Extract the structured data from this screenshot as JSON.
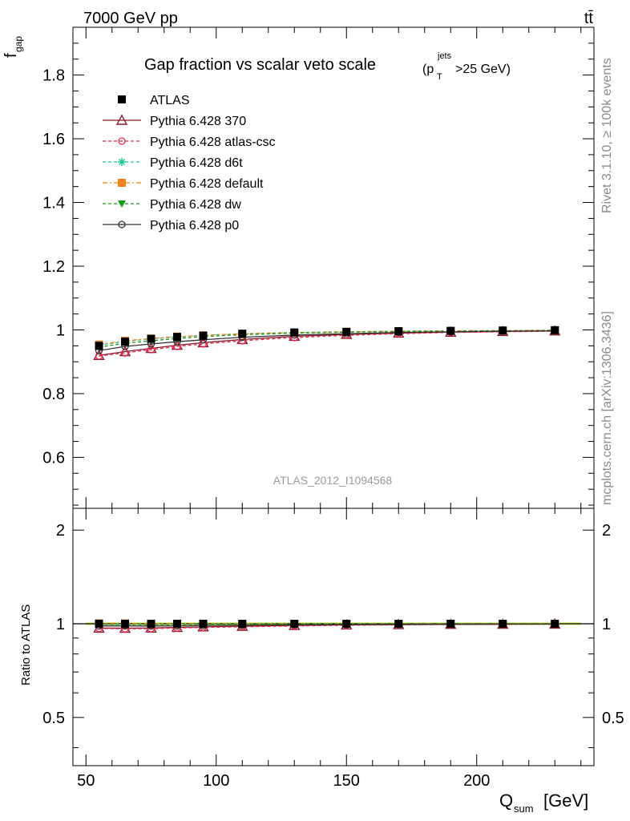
{
  "header": {
    "energy_label": "7000 GeV pp",
    "process_label": "tt̄"
  },
  "side_labels": {
    "rivet": "Rivet 3.1.10, ≥ 100k events",
    "mcplots": "mcplots.cern.ch [arXiv:1306.3436]"
  },
  "chart_data": {
    "type": "line",
    "title_main": "Gap fraction vs scalar veto scale",
    "title_cut": "(p",
    "title_cut_sup": "jets",
    "title_cut_sub": "T",
    "title_cut_tail": ">25 GeV)",
    "ylabel_main": "f",
    "ylabel_main_sub": "gap",
    "ylabel_ratio": "Ratio to ATLAS",
    "xlabel": "Q",
    "xlabel_sub": "sum",
    "xlabel_unit": "[GeV]",
    "watermark": "ATLAS_2012_I1094568",
    "xlim": [
      45,
      245
    ],
    "ylim_main": [
      0.44,
      1.95
    ],
    "ylim_ratio": [
      0.35,
      2.35
    ],
    "ratio_log_scale": true,
    "x_ticks": [
      50,
      100,
      150,
      200
    ],
    "y_ticks_main": [
      0.6,
      0.8,
      1,
      1.2,
      1.4,
      1.6,
      1.8
    ],
    "y_ticks_ratio": [
      0.5,
      1,
      2
    ],
    "x": [
      55,
      65,
      75,
      85,
      95,
      110,
      130,
      150,
      170,
      190,
      210,
      230
    ],
    "series": [
      {
        "name": "ATLAS",
        "marker": "filled-square",
        "color": "#000000",
        "dash": "none",
        "values": [
          0.95,
          0.963,
          0.972,
          0.978,
          0.982,
          0.988,
          0.992,
          0.994,
          0.996,
          0.997,
          0.998,
          0.999
        ]
      },
      {
        "name": "Pythia 6.428 370",
        "marker": "open-triangle",
        "color": "#8b1a2b",
        "dash": "none",
        "values": [
          0.92,
          0.932,
          0.942,
          0.952,
          0.96,
          0.97,
          0.98,
          0.986,
          0.99,
          0.993,
          0.995,
          0.997
        ]
      },
      {
        "name": "Pythia 6.428 atlas-csc",
        "marker": "open-circle",
        "color": "#e8254a",
        "dash": "4,3",
        "values": [
          0.918,
          0.928,
          0.938,
          0.948,
          0.956,
          0.966,
          0.976,
          0.983,
          0.988,
          0.992,
          0.994,
          0.996
        ]
      },
      {
        "name": "Pythia 6.428 d6t",
        "marker": "asterisk",
        "color": "#18c48c",
        "dash": "4,3",
        "values": [
          0.952,
          0.964,
          0.972,
          0.978,
          0.983,
          0.988,
          0.992,
          0.994,
          0.996,
          0.997,
          0.998,
          0.999
        ]
      },
      {
        "name": "Pythia 6.428 default",
        "marker": "filled-square",
        "color": "#f58220",
        "dash": "6,3,2,3",
        "values": [
          0.954,
          0.966,
          0.973,
          0.979,
          0.983,
          0.988,
          0.991,
          0.994,
          0.996,
          0.997,
          0.998,
          0.999
        ]
      },
      {
        "name": "Pythia 6.428 dw",
        "marker": "filled-triangle-down",
        "color": "#1a9a1a",
        "dash": "4,3",
        "values": [
          0.946,
          0.958,
          0.966,
          0.973,
          0.979,
          0.985,
          0.99,
          0.993,
          0.995,
          0.996,
          0.997,
          0.998
        ]
      },
      {
        "name": "Pythia 6.428 p0",
        "marker": "open-circle",
        "color": "#333333",
        "dash": "none",
        "values": [
          0.935,
          0.948,
          0.956,
          0.963,
          0.969,
          0.977,
          0.984,
          0.988,
          0.992,
          0.994,
          0.996,
          0.997
        ]
      }
    ]
  }
}
